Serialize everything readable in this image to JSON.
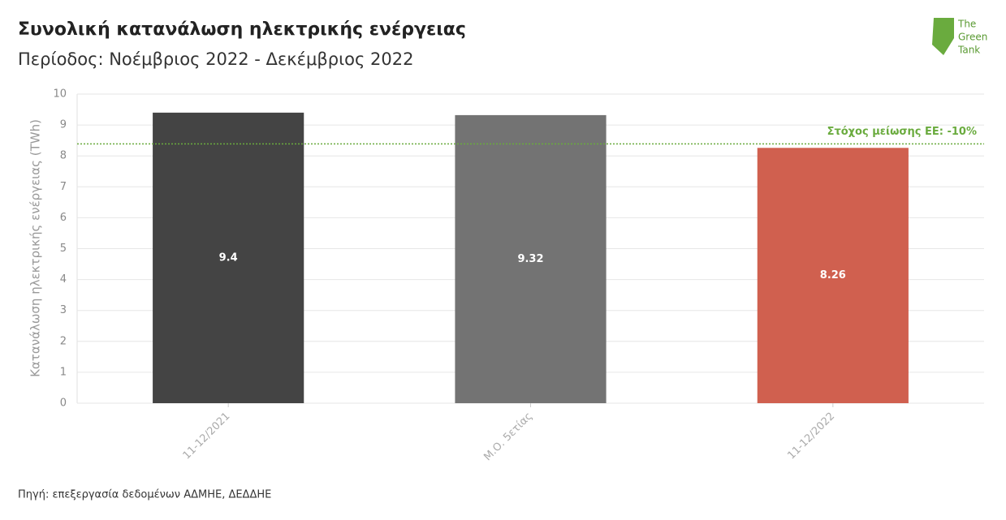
{
  "chart_data": {
    "type": "bar",
    "title": "Συνολική κατανάλωση ηλεκτρικής ενέργειας",
    "subtitle": "Περίοδος: Νοέμβριος 2022 - Δεκέμβριος 2022",
    "y_label": "Κατανάλωση ηλεκτρικής ενέργειας (TWh)",
    "categories": [
      "11-12/2021",
      "Μ.Ο. 5ετίας",
      "11-12/2022"
    ],
    "values": [
      9.4,
      9.32,
      8.26
    ],
    "colors": [
      "#444444",
      "#737373",
      "#d0604f"
    ],
    "ylim": [
      0,
      10
    ],
    "yticks": [
      0,
      1,
      2,
      3,
      4,
      5,
      6,
      7,
      8,
      9,
      10
    ],
    "grid": true,
    "reference_line": {
      "value": 8.39,
      "label": "Στόχος μείωσης ΕΕ: -10%",
      "color": "#6aab3e"
    },
    "source": "Πηγή: επεξεργασία δεδομένων ΑΔΜΗΕ, ΔΕΔΔΗΕ"
  },
  "logo": {
    "lines": [
      "The",
      "Green",
      "Tank"
    ]
  }
}
